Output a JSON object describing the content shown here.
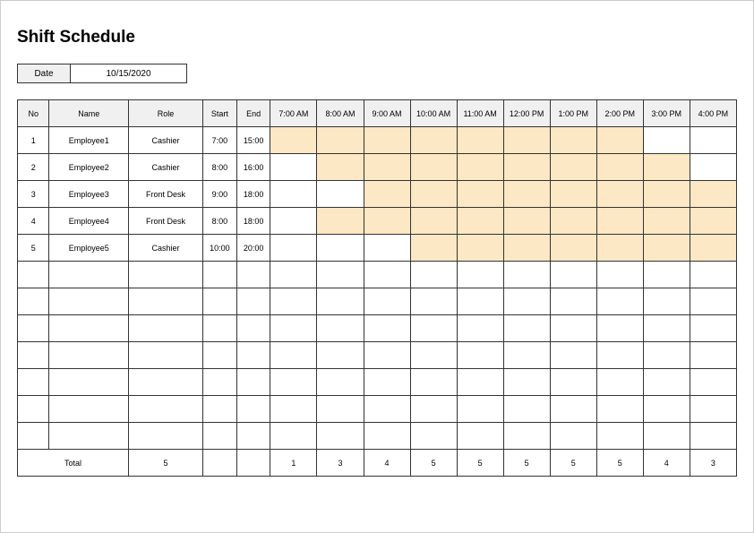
{
  "title": "Shift Schedule",
  "date_label": "Date",
  "date_value": "10/15/2020",
  "columns": {
    "no": "No",
    "name": "Name",
    "role": "Role",
    "start": "Start",
    "end": "End"
  },
  "hours": [
    "7:00 AM",
    "8:00 AM",
    "9:00 AM",
    "10:00 AM",
    "11:00 AM",
    "12:00 PM",
    "1:00 PM",
    "2:00 PM",
    "3:00 PM",
    "4:00 PM"
  ],
  "rows": [
    {
      "no": "1",
      "name": "Employee1",
      "role": "Cashier",
      "start": "7:00",
      "end": "15:00",
      "cells": [
        true,
        true,
        true,
        true,
        true,
        true,
        true,
        true,
        false,
        false
      ]
    },
    {
      "no": "2",
      "name": "Employee2",
      "role": "Cashier",
      "start": "8:00",
      "end": "16:00",
      "cells": [
        false,
        true,
        true,
        true,
        true,
        true,
        true,
        true,
        true,
        false
      ]
    },
    {
      "no": "3",
      "name": "Employee3",
      "role": "Front Desk",
      "start": "9:00",
      "end": "18:00",
      "cells": [
        false,
        false,
        true,
        true,
        true,
        true,
        true,
        true,
        true,
        true
      ]
    },
    {
      "no": "4",
      "name": "Employee4",
      "role": "Front Desk",
      "start": "8:00",
      "end": "18:00",
      "cells": [
        false,
        true,
        true,
        true,
        true,
        true,
        true,
        true,
        true,
        true
      ]
    },
    {
      "no": "5",
      "name": "Employee5",
      "role": "Cashier",
      "start": "10:00",
      "end": "20:00",
      "cells": [
        false,
        false,
        false,
        true,
        true,
        true,
        true,
        true,
        true,
        true
      ]
    }
  ],
  "empty_rows": 7,
  "total_label": "Total",
  "total_role": "5",
  "totals": [
    "1",
    "3",
    "4",
    "5",
    "5",
    "5",
    "5",
    "5",
    "4",
    "3"
  ],
  "colors": {
    "shaded": "#fce8c4",
    "header_bg": "#f0f0f0",
    "border": "#333333",
    "page_border": "#cccccc",
    "background": "#ffffff"
  }
}
